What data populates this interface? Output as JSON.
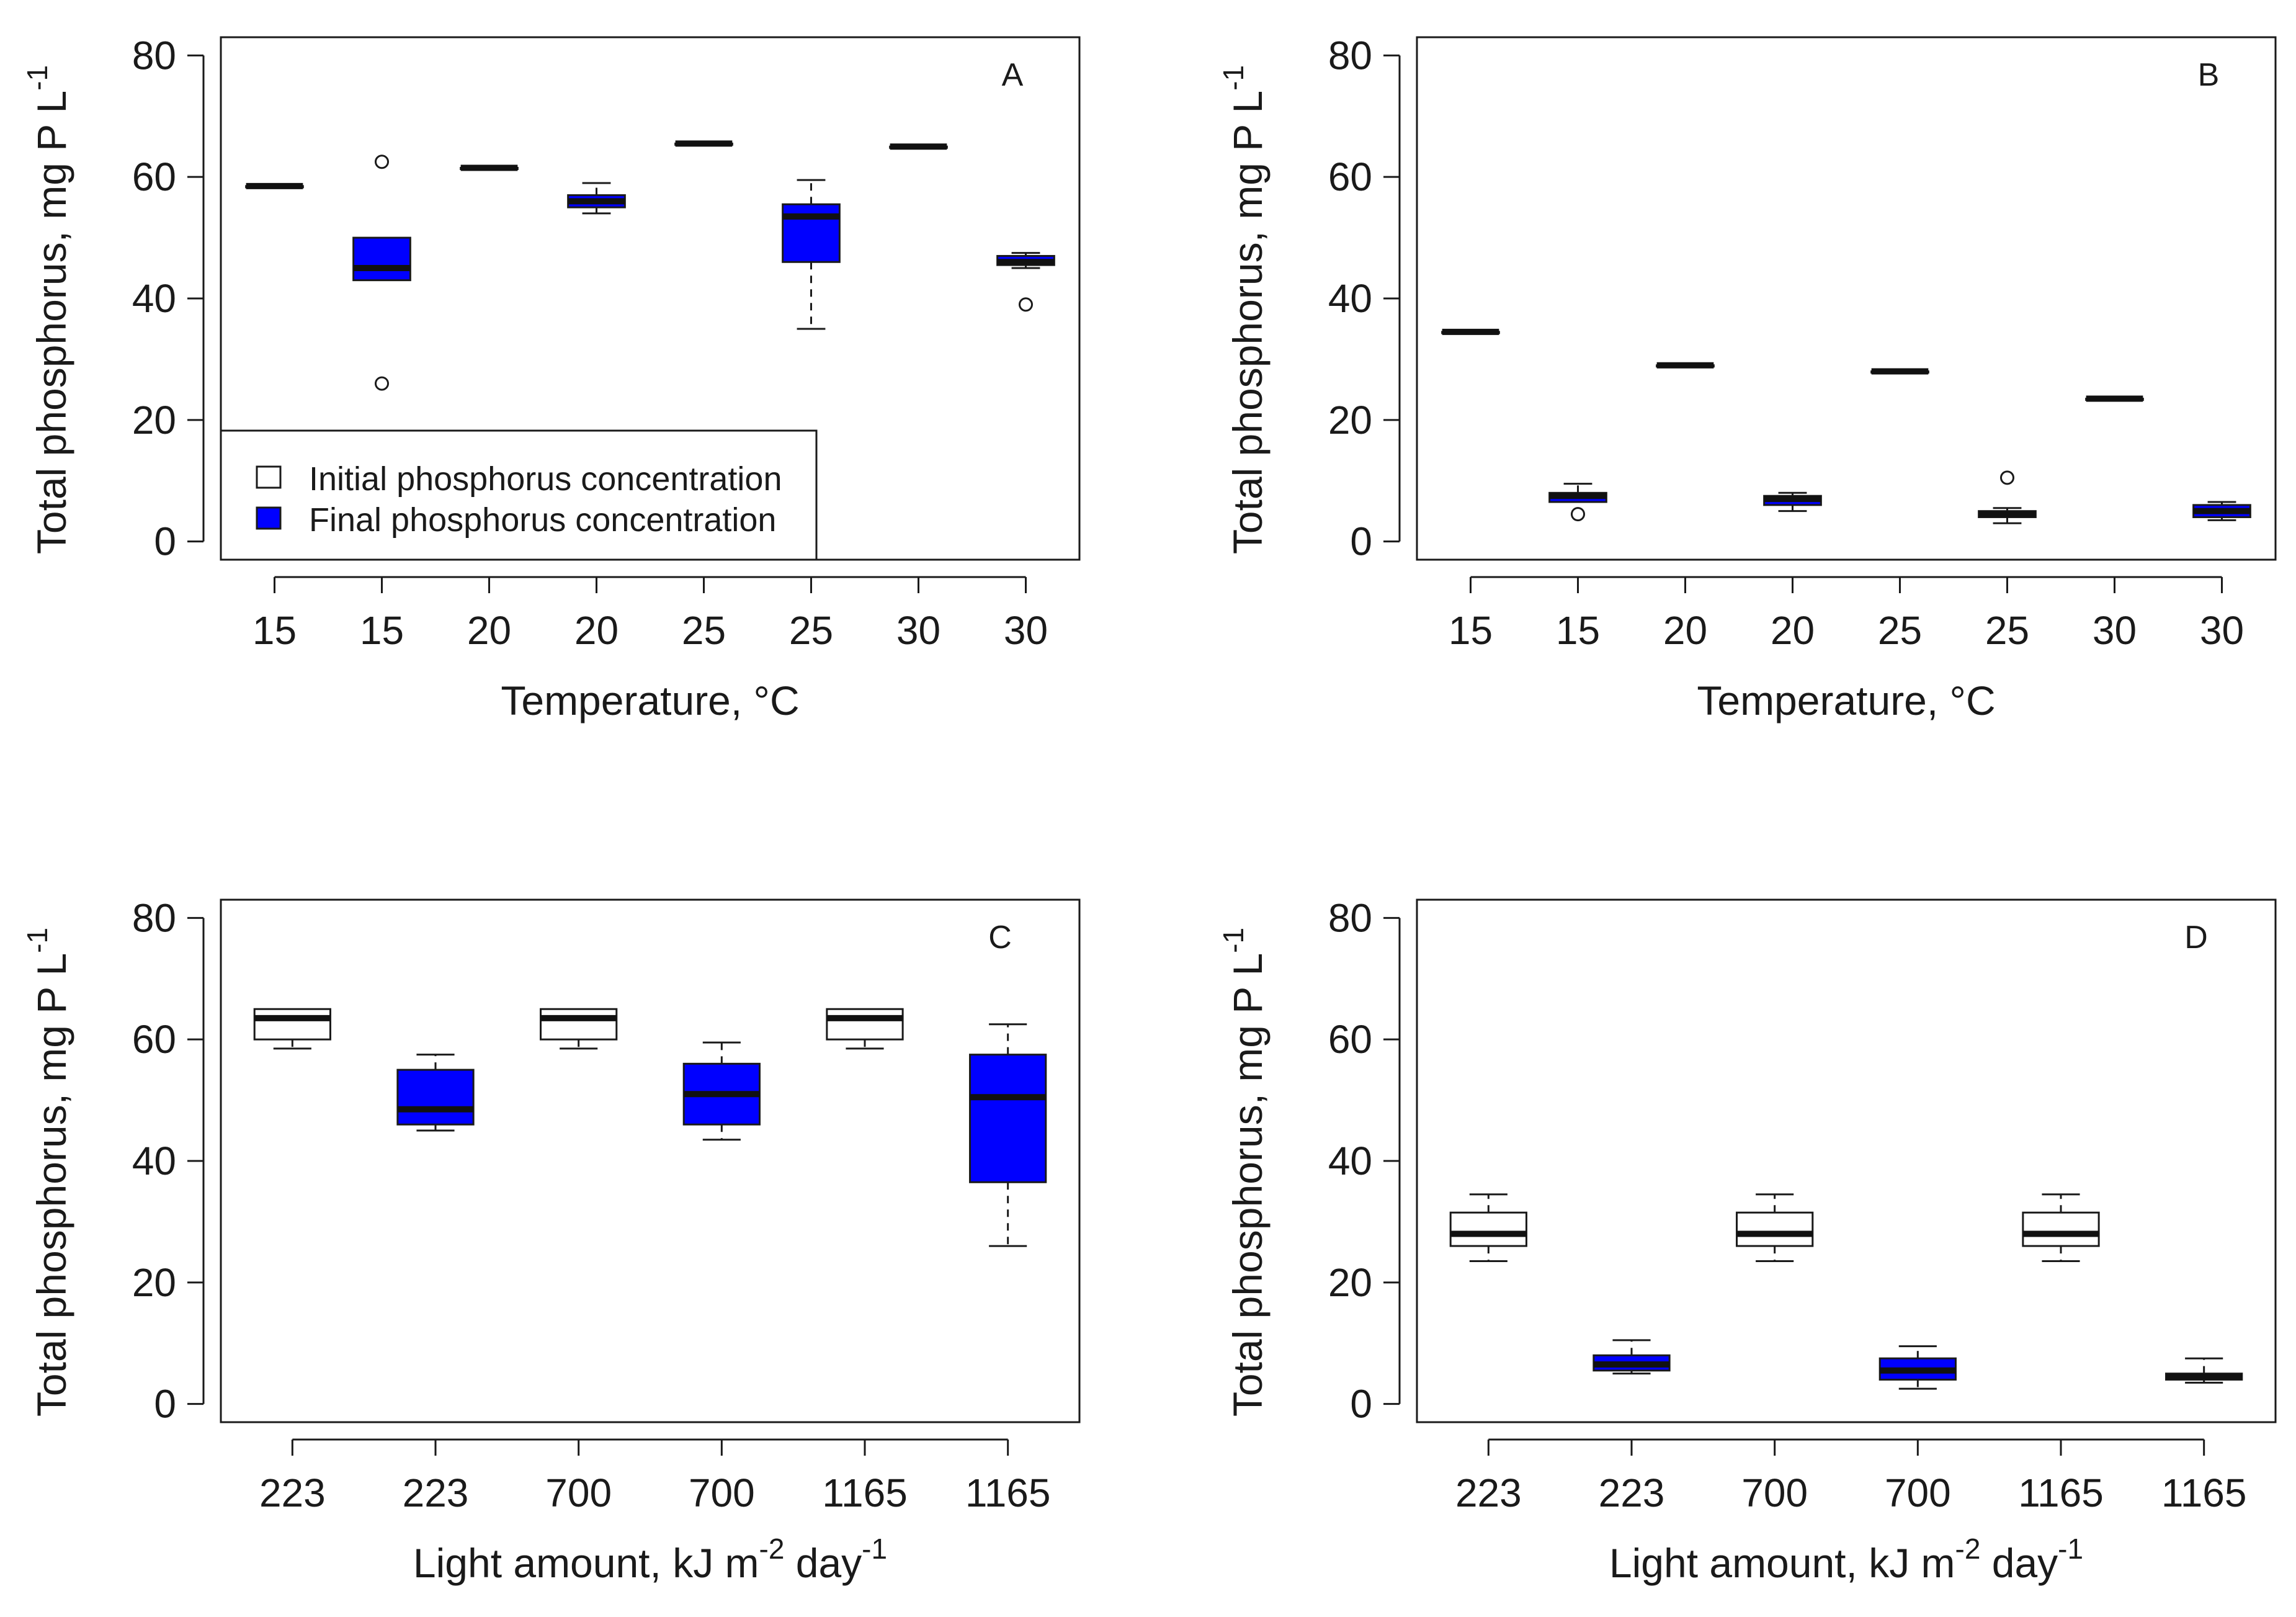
{
  "legend": {
    "initial_label": "Initial phosphorus concentration",
    "final_label": "Final phosphorus concentration",
    "initial_color": "#ffffff",
    "final_color": "#0000ff"
  },
  "chart_data": [
    {
      "type": "boxplot",
      "panel": "A",
      "ylabel": "Total phosphorus, mg P L",
      "ylabel_sup": "-1",
      "xlabel": "Temperature, °C",
      "xlabel_sup": [],
      "ylim": [
        -3,
        83
      ],
      "yticks": [
        0,
        20,
        40,
        60,
        80
      ],
      "legend_position": "bottom-left",
      "categories": [
        "15",
        "15",
        "20",
        "20",
        "25",
        "25",
        "30",
        "30"
      ],
      "boxes": [
        {
          "group": "initial",
          "whisker_low": 58.5,
          "q1": 58.5,
          "median": 58.5,
          "q3": 58.5,
          "whisker_high": 58.5,
          "outliers": []
        },
        {
          "group": "final",
          "whisker_low": 43,
          "q1": 43,
          "median": 45,
          "q3": 50,
          "whisker_high": 50,
          "outliers": [
            62.5,
            26
          ]
        },
        {
          "group": "initial",
          "whisker_low": 61.5,
          "q1": 61.5,
          "median": 61.5,
          "q3": 61.5,
          "whisker_high": 61.5,
          "outliers": []
        },
        {
          "group": "final",
          "whisker_low": 54,
          "q1": 55,
          "median": 56,
          "q3": 57,
          "whisker_high": 59,
          "outliers": []
        },
        {
          "group": "initial",
          "whisker_low": 65.5,
          "q1": 65.5,
          "median": 65.5,
          "q3": 65.5,
          "whisker_high": 65.5,
          "outliers": []
        },
        {
          "group": "final",
          "whisker_low": 35,
          "q1": 46,
          "median": 53.5,
          "q3": 55.5,
          "whisker_high": 59.5,
          "outliers": []
        },
        {
          "group": "initial",
          "whisker_low": 65,
          "q1": 65,
          "median": 65,
          "q3": 65,
          "whisker_high": 65,
          "outliers": []
        },
        {
          "group": "final",
          "whisker_low": 45,
          "q1": 45.5,
          "median": 46,
          "q3": 47,
          "whisker_high": 47.5,
          "outliers": [
            39
          ]
        }
      ]
    },
    {
      "type": "boxplot",
      "panel": "B",
      "ylabel": "Total phosphorus, mg P L",
      "ylabel_sup": "-1",
      "xlabel": "Temperature, °C",
      "xlabel_sup": [],
      "ylim": [
        -3,
        83
      ],
      "yticks": [
        0,
        20,
        40,
        60,
        80
      ],
      "categories": [
        "15",
        "15",
        "20",
        "20",
        "25",
        "25",
        "30",
        "30"
      ],
      "boxes": [
        {
          "group": "initial",
          "whisker_low": 34.5,
          "q1": 34.5,
          "median": 34.5,
          "q3": 34.5,
          "whisker_high": 34.5,
          "outliers": []
        },
        {
          "group": "final",
          "whisker_low": 6.5,
          "q1": 6.5,
          "median": 7.5,
          "q3": 8,
          "whisker_high": 9.5,
          "outliers": [
            4.5
          ]
        },
        {
          "group": "initial",
          "whisker_low": 29,
          "q1": 29,
          "median": 29,
          "q3": 29,
          "whisker_high": 29,
          "outliers": []
        },
        {
          "group": "final",
          "whisker_low": 5,
          "q1": 6,
          "median": 7,
          "q3": 7.5,
          "whisker_high": 8,
          "outliers": []
        },
        {
          "group": "initial",
          "whisker_low": 28,
          "q1": 28,
          "median": 28,
          "q3": 28,
          "whisker_high": 28,
          "outliers": []
        },
        {
          "group": "final",
          "whisker_low": 3,
          "q1": 4,
          "median": 4.5,
          "q3": 5,
          "whisker_high": 5.5,
          "outliers": [
            10.5
          ]
        },
        {
          "group": "initial",
          "whisker_low": 23.5,
          "q1": 23.5,
          "median": 23.5,
          "q3": 23.5,
          "whisker_high": 23.5,
          "outliers": []
        },
        {
          "group": "final",
          "whisker_low": 3.5,
          "q1": 4,
          "median": 5,
          "q3": 6,
          "whisker_high": 6.5,
          "outliers": []
        }
      ]
    },
    {
      "type": "boxplot",
      "panel": "C",
      "ylabel": "Total phosphorus, mg P L",
      "ylabel_sup": "-1",
      "xlabel": "Light amount, kJ m",
      "xlabel_sup": [
        "-2",
        " day",
        "-1"
      ],
      "ylim": [
        -3,
        83
      ],
      "yticks": [
        0,
        20,
        40,
        60,
        80
      ],
      "categories": [
        "223",
        "223",
        "700",
        "700",
        "1165",
        "1165"
      ],
      "boxes": [
        {
          "group": "initial",
          "whisker_low": 58.5,
          "q1": 60,
          "median": 63.5,
          "q3": 65,
          "whisker_high": 65,
          "outliers": []
        },
        {
          "group": "final",
          "whisker_low": 45,
          "q1": 46,
          "median": 48.5,
          "q3": 55,
          "whisker_high": 57.5,
          "outliers": []
        },
        {
          "group": "initial",
          "whisker_low": 58.5,
          "q1": 60,
          "median": 63.5,
          "q3": 65,
          "whisker_high": 65,
          "outliers": []
        },
        {
          "group": "final",
          "whisker_low": 43.5,
          "q1": 46,
          "median": 51,
          "q3": 56,
          "whisker_high": 59.5,
          "outliers": []
        },
        {
          "group": "initial",
          "whisker_low": 58.5,
          "q1": 60,
          "median": 63.5,
          "q3": 65,
          "whisker_high": 65,
          "outliers": []
        },
        {
          "group": "final",
          "whisker_low": 26,
          "q1": 36.5,
          "median": 50.5,
          "q3": 57.5,
          "whisker_high": 62.5,
          "outliers": []
        }
      ]
    },
    {
      "type": "boxplot",
      "panel": "D",
      "ylabel": "Total phosphorus, mg P L",
      "ylabel_sup": "-1",
      "xlabel": "Light amount, kJ m",
      "xlabel_sup": [
        "-2",
        " day",
        "-1"
      ],
      "ylim": [
        -3,
        83
      ],
      "yticks": [
        0,
        20,
        40,
        60,
        80
      ],
      "categories": [
        "223",
        "223",
        "700",
        "700",
        "1165",
        "1165"
      ],
      "boxes": [
        {
          "group": "initial",
          "whisker_low": 23.5,
          "q1": 26,
          "median": 28,
          "q3": 31.5,
          "whisker_high": 34.5,
          "outliers": []
        },
        {
          "group": "final",
          "whisker_low": 5,
          "q1": 5.5,
          "median": 6.5,
          "q3": 8,
          "whisker_high": 10.5,
          "outliers": []
        },
        {
          "group": "initial",
          "whisker_low": 23.5,
          "q1": 26,
          "median": 28,
          "q3": 31.5,
          "whisker_high": 34.5,
          "outliers": []
        },
        {
          "group": "final",
          "whisker_low": 2.5,
          "q1": 4,
          "median": 5.5,
          "q3": 7.5,
          "whisker_high": 9.5,
          "outliers": []
        },
        {
          "group": "initial",
          "whisker_low": 23.5,
          "q1": 26,
          "median": 28,
          "q3": 31.5,
          "whisker_high": 34.5,
          "outliers": []
        },
        {
          "group": "final",
          "whisker_low": 3.5,
          "q1": 4,
          "median": 4.5,
          "q3": 5,
          "whisker_high": 7.5,
          "outliers": []
        }
      ]
    }
  ]
}
